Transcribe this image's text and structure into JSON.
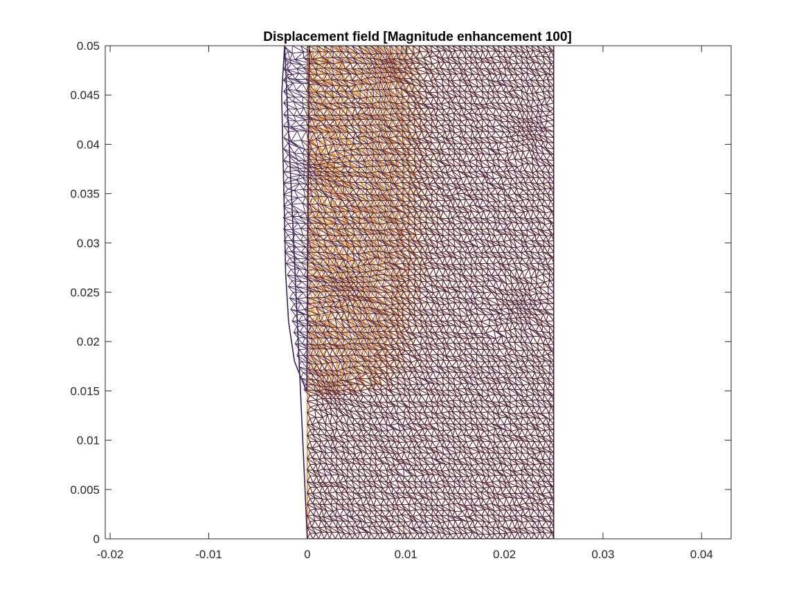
{
  "chart_data": {
    "type": "scatter",
    "title": "Displacement field [Magnitude enhancement 100]",
    "xlabel": "",
    "ylabel": "",
    "xlim": [
      -0.0205,
      0.043
    ],
    "ylim": [
      0,
      0.05
    ],
    "x_ticks": [
      -0.02,
      -0.01,
      0,
      0.01,
      0.02,
      0.03,
      0.04
    ],
    "x_tick_labels": [
      "-0.02",
      "-0.01",
      "0",
      "0.01",
      "0.02",
      "0.03",
      "0.04"
    ],
    "y_ticks": [
      0,
      0.005,
      0.01,
      0.015,
      0.02,
      0.025,
      0.03,
      0.035,
      0.04,
      0.045,
      0.05
    ],
    "y_tick_labels": [
      "0",
      "0.005",
      "0.01",
      "0.015",
      "0.02",
      "0.025",
      "0.03",
      "0.035",
      "0.04",
      "0.045",
      "0.05"
    ],
    "grid": false,
    "box": true,
    "series": [
      {
        "role": "undeformed-mesh",
        "color": "#f28e1c",
        "outline_x": [
          0,
          0.025,
          0.025,
          0,
          0
        ],
        "outline_y": [
          0,
          0,
          0.05,
          0.05,
          0
        ]
      },
      {
        "role": "deformed-mesh",
        "color": "#3b1f5a",
        "outline_x": [
          0,
          0.025,
          0.025,
          0.0002,
          -5e-05,
          -0.0005,
          -0.0013,
          -0.0019,
          -0.0022,
          -0.0023,
          -0.0024,
          -0.0026,
          -0.0023,
          0
        ],
        "outline_y": [
          0,
          0,
          0.05,
          0.05,
          0.015,
          0.016,
          0.018,
          0.022,
          0.027,
          0.032,
          0.036,
          0.045,
          0.05,
          0
        ]
      }
    ],
    "dense_regions": [
      {
        "x": 0.0085,
        "y": 0.048
      },
      {
        "x": 0.0225,
        "y": 0.0415
      },
      {
        "x": 0.0005,
        "y": 0.0375
      },
      {
        "x": 0.0025,
        "y": 0.0372
      },
      {
        "x": 0.0045,
        "y": 0.0255
      },
      {
        "x": 0.0215,
        "y": 0.0235
      },
      {
        "x": 0.0025,
        "y": 0.015
      },
      {
        "x": -0.001,
        "y": 0.0475
      }
    ]
  },
  "colors": {
    "axes": "#262626",
    "background": "#ffffff"
  }
}
